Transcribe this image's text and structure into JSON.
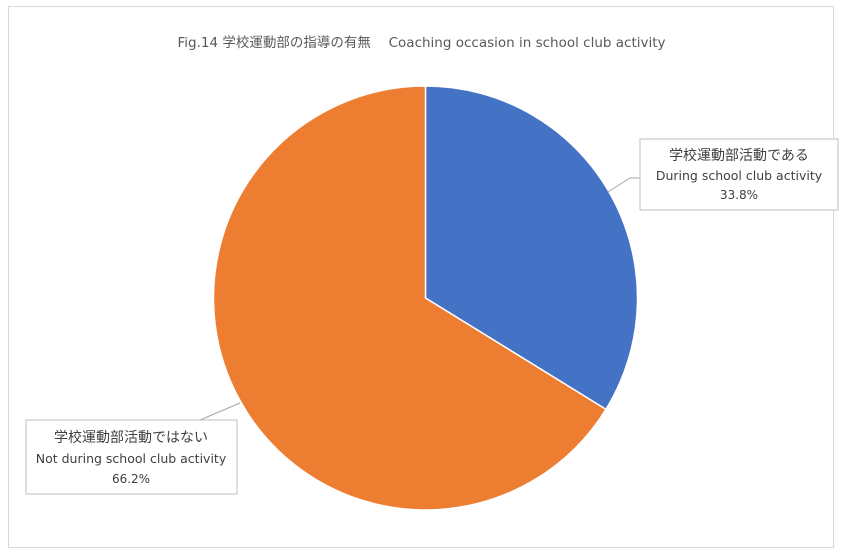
{
  "chart_data": {
    "type": "pie",
    "title": "Fig.14 学校運動部の指導の有無　 Coaching occasion in school club activity",
    "slices": [
      {
        "label_ja": "学校運動部活動である",
        "label_en": "During school club activity",
        "value": 33.8,
        "value_label": "33.8%",
        "color": "#4472c4"
      },
      {
        "label_ja": "学校運動部活動ではない",
        "label_en": "Not during school club activity",
        "value": 66.2,
        "value_label": "66.2%",
        "color": "#ed7d31"
      }
    ],
    "start_angle_deg": 0,
    "direction": "clockwise",
    "legend": "none",
    "data_labels": "callout"
  }
}
